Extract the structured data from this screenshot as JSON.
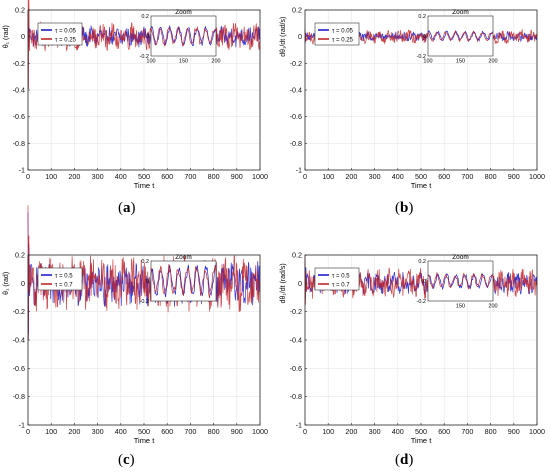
{
  "panels": [
    {
      "id": "a",
      "caption": "a",
      "ylabel": "θ₁ (rad)",
      "xlabel": "Time t",
      "legend": [
        "τ = 0.05",
        "τ = 0.25"
      ],
      "zoom_title": "Zoom"
    },
    {
      "id": "b",
      "caption": "b",
      "ylabel": "dθ₁/dt (rad/s)",
      "xlabel": "Time t",
      "legend": [
        "τ = 0.05",
        "τ = 0.25"
      ],
      "zoom_title": "Zoom"
    },
    {
      "id": "c",
      "caption": "c",
      "ylabel": "θ₁ (rad)",
      "xlabel": "Time t",
      "legend": [
        "τ = 0.5",
        "τ = 0.7"
      ],
      "zoom_title": "Zoom"
    },
    {
      "id": "d",
      "caption": "d",
      "ylabel": "dθ₁/dt (rad/s)",
      "xlabel": "Time t",
      "legend": [
        "τ = 0.5",
        "τ = 0.7"
      ],
      "zoom_title": "Zoom"
    }
  ],
  "colors": {
    "series1": "#1f1fcf",
    "series2": "#c0262a",
    "axis": "#262626",
    "grid": "#e6e6e6"
  },
  "chart_data": [
    {
      "panel": "a",
      "type": "line",
      "xlabel": "Time t",
      "ylabel": "θ₁ (rad)",
      "xlim": [
        0,
        1000
      ],
      "ylim": [
        -1,
        0.2
      ],
      "xticks": [
        0,
        100,
        200,
        300,
        400,
        500,
        600,
        700,
        800,
        900,
        1000
      ],
      "yticks": [
        -1,
        -0.8,
        -0.6,
        -0.4,
        -0.2,
        0,
        0.2
      ],
      "series": [
        {
          "name": "τ = 0.05",
          "mean": 0.0,
          "amplitude": 0.06,
          "initial_peak": 0.1
        },
        {
          "name": "τ = 0.25",
          "mean": 0.0,
          "amplitude": 0.08,
          "initial_peak": 0.5
        }
      ],
      "inset": {
        "title": "Zoom",
        "xlim": [
          100,
          200
        ],
        "ylim": [
          -0.2,
          0.2
        ],
        "xticks": [
          100,
          150,
          200
        ],
        "yticks": [
          -0.2,
          0,
          0.2
        ]
      }
    },
    {
      "panel": "b",
      "type": "line",
      "xlabel": "Time t",
      "ylabel": "dθ₁/dt (rad/s)",
      "xlim": [
        0,
        1000
      ],
      "ylim": [
        -1,
        0.2
      ],
      "xticks": [
        0,
        100,
        200,
        300,
        400,
        500,
        600,
        700,
        800,
        900,
        1000
      ],
      "yticks": [
        -1,
        -0.8,
        -0.6,
        -0.4,
        -0.2,
        0,
        0.2
      ],
      "series": [
        {
          "name": "τ = 0.05",
          "mean": 0.0,
          "amplitude": 0.03,
          "initial_peak": 0.05
        },
        {
          "name": "τ = 0.25",
          "mean": 0.0,
          "amplitude": 0.04,
          "initial_peak": 0.06
        }
      ],
      "inset": {
        "title": "Zoom",
        "xlim": [
          100,
          200
        ],
        "ylim": [
          -0.2,
          0.2
        ],
        "xticks": [
          100,
          150,
          200
        ],
        "yticks": [
          -0.2,
          0,
          0.2
        ]
      }
    },
    {
      "panel": "c",
      "type": "line",
      "xlabel": "Time t",
      "ylabel": "θ₁ (rad)",
      "xlim": [
        0,
        1000
      ],
      "ylim": [
        -1,
        0.2
      ],
      "xticks": [
        0,
        100,
        200,
        300,
        400,
        500,
        600,
        700,
        800,
        900,
        1000
      ],
      "yticks": [
        -1,
        -0.8,
        -0.6,
        -0.4,
        -0.2,
        0,
        0.2
      ],
      "series": [
        {
          "name": "τ = 0.5",
          "mean": 0.0,
          "amplitude": 0.12,
          "initial_peak": 0.5
        },
        {
          "name": "τ = 0.7",
          "mean": 0.0,
          "amplitude": 0.15,
          "initial_peak": 0.55
        }
      ],
      "inset": {
        "title": "Zoom",
        "xlim": [
          100,
          200
        ],
        "ylim": [
          -0.2,
          0.2
        ],
        "xticks": [],
        "yticks": [
          -0.2,
          0,
          0.2
        ]
      }
    },
    {
      "panel": "d",
      "type": "line",
      "xlabel": "Time t",
      "ylabel": "dθ₁/dt (rad/s)",
      "xlim": [
        0,
        1000
      ],
      "ylim": [
        -1,
        0.2
      ],
      "xticks": [
        0,
        100,
        200,
        300,
        400,
        500,
        600,
        700,
        800,
        900,
        1000
      ],
      "yticks": [
        -1,
        -0.8,
        -0.6,
        -0.4,
        -0.2,
        0,
        0.2
      ],
      "series": [
        {
          "name": "τ = 0.5",
          "mean": 0.0,
          "amplitude": 0.06,
          "initial_peak": 0.15
        },
        {
          "name": "τ = 0.7",
          "mean": 0.0,
          "amplitude": 0.08,
          "initial_peak": 0.2
        }
      ],
      "inset": {
        "title": "Zoom",
        "xlim": [
          100,
          200
        ],
        "ylim": [
          -0.2,
          0.2
        ],
        "xticks": [
          150,
          200
        ],
        "yticks": [
          -0.2,
          0,
          0.2
        ]
      }
    }
  ]
}
